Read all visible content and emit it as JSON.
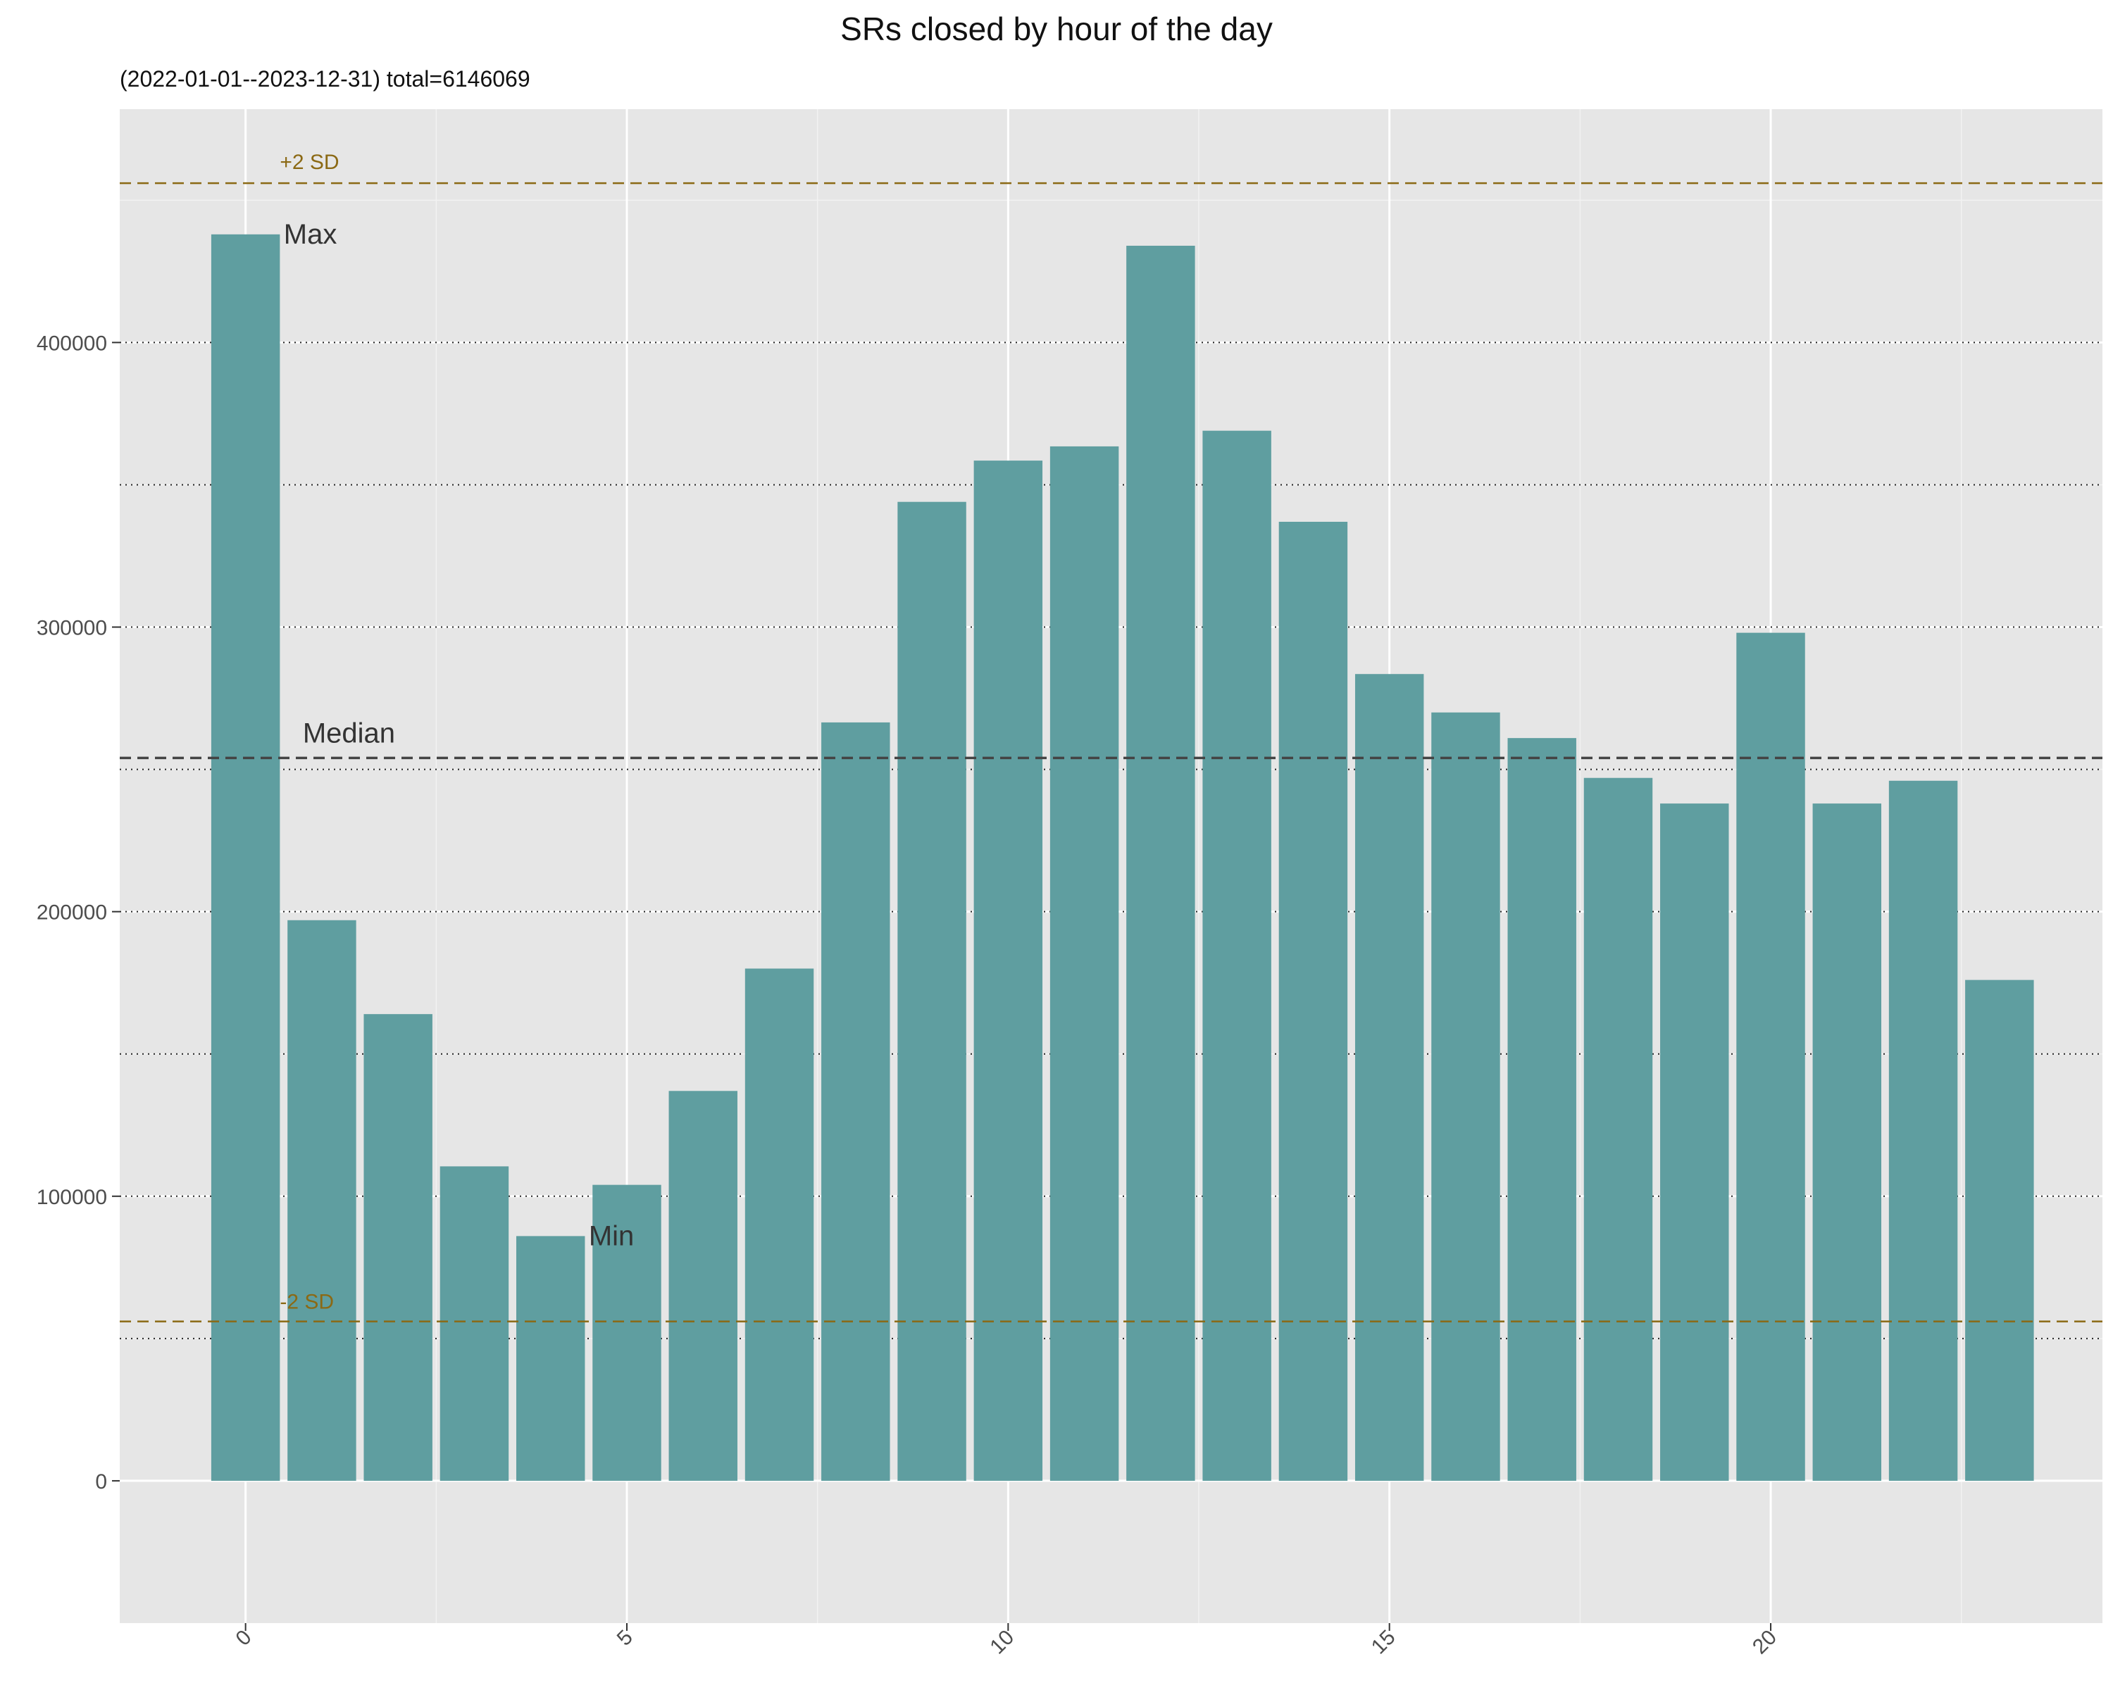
{
  "chart_data": {
    "type": "bar",
    "title": "SRs closed by hour of the day",
    "subtitle": "(2022-01-01--2023-12-31) total=6146069",
    "x": [
      0,
      1,
      2,
      3,
      4,
      5,
      6,
      7,
      8,
      9,
      10,
      11,
      12,
      13,
      14,
      15,
      16,
      17,
      18,
      19,
      20,
      21,
      22,
      23
    ],
    "values": [
      438000,
      197000,
      164000,
      110500,
      86000,
      104000,
      137000,
      180000,
      266500,
      344000,
      358500,
      363500,
      434000,
      369000,
      337000,
      283500,
      270000,
      261000,
      247000,
      238000,
      298000,
      238000,
      246000,
      176000
    ],
    "xticks": [
      0,
      5,
      10,
      15,
      20
    ],
    "yticks": [
      0,
      100000,
      200000,
      300000,
      400000
    ],
    "ylim": [
      -50000,
      482000
    ],
    "xlim": [
      -1.65,
      24.35
    ],
    "grid": true,
    "bar_color": "#5f9ea0",
    "reference_lines": {
      "median": {
        "label": "Median",
        "value": 254000,
        "color": "#444444"
      },
      "plus2sd": {
        "label": "+2 SD",
        "value": 456000,
        "color": "#8b6914"
      },
      "minus2sd": {
        "label": "-2 SD",
        "value": 56000,
        "color": "#8b6914"
      }
    },
    "annotations": [
      {
        "label": "Max",
        "x": 0,
        "y": 438000
      },
      {
        "label": "Min",
        "x": 4,
        "y": 86000
      }
    ]
  }
}
